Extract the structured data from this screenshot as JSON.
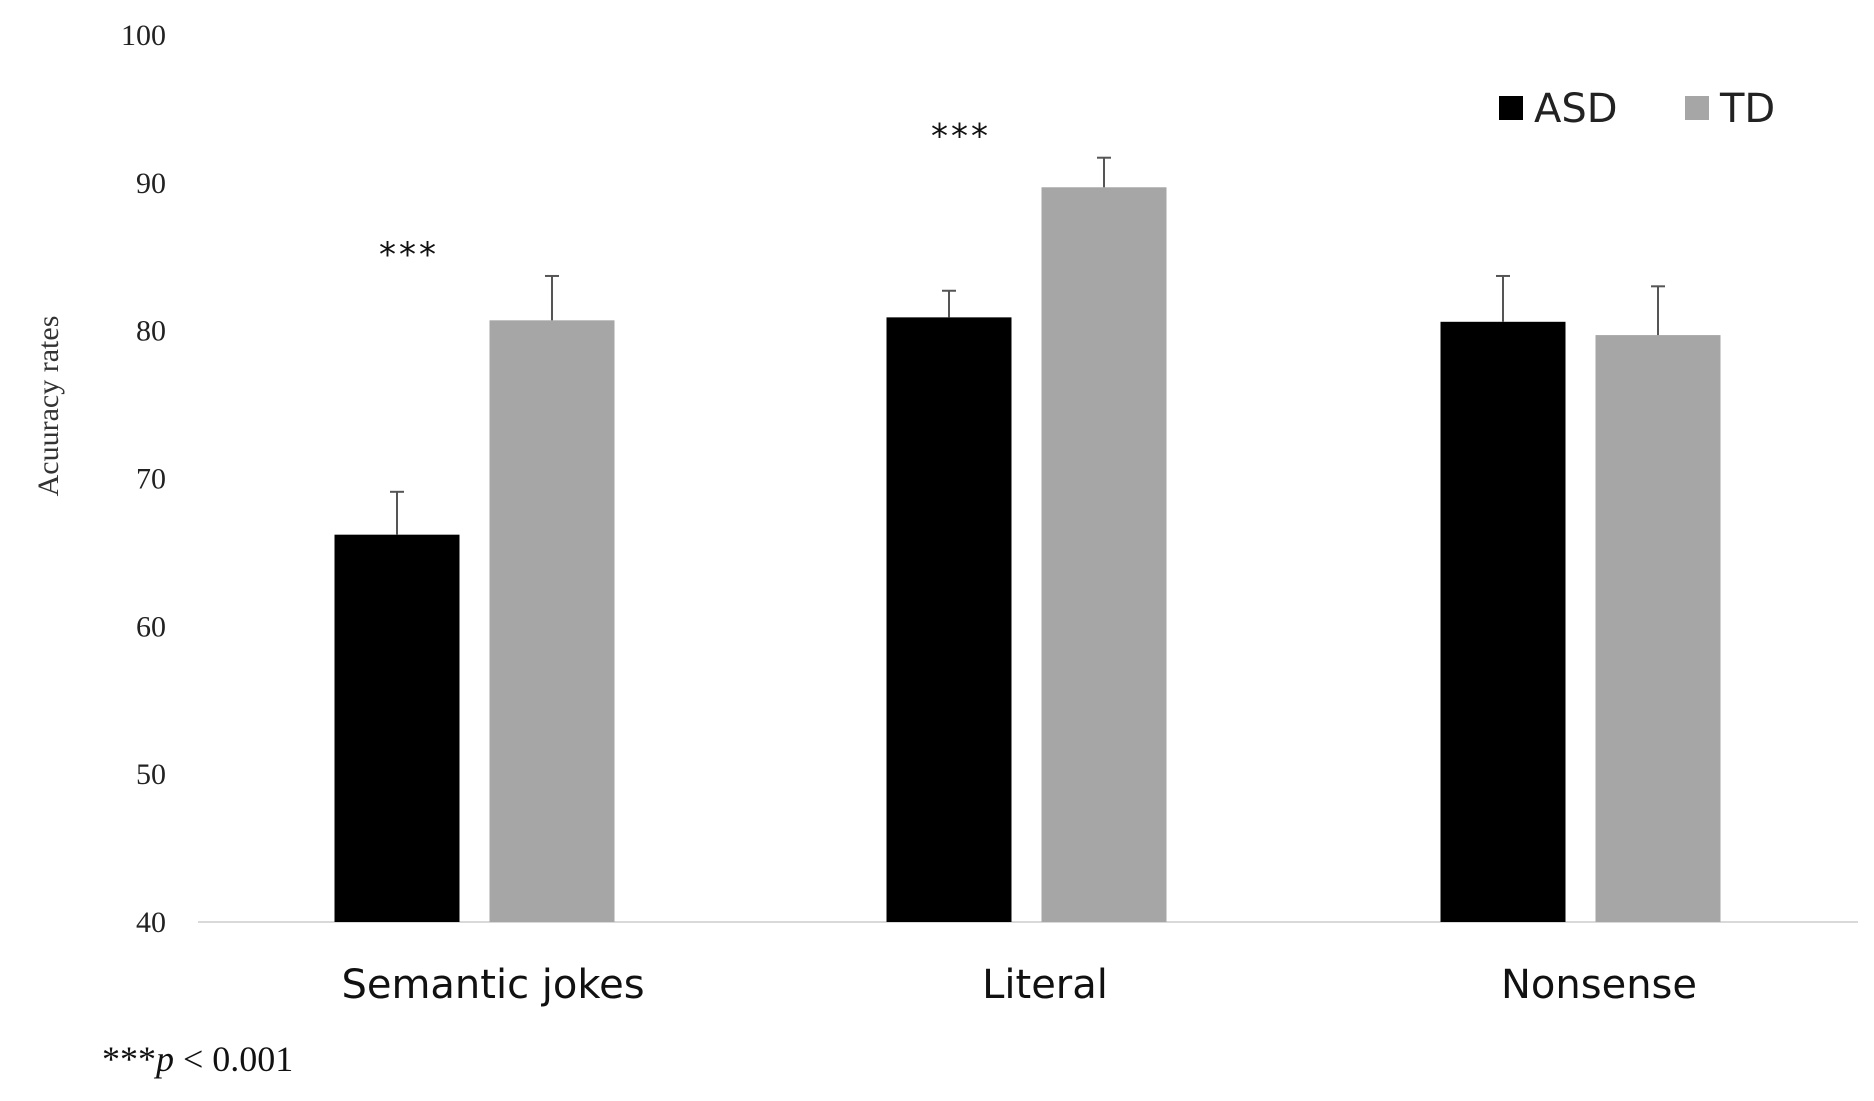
{
  "chart_data": {
    "type": "bar",
    "categories": [
      "Semantic jokes",
      "Literal",
      "Nonsense"
    ],
    "series": [
      {
        "name": "ASD",
        "color": "#000000",
        "values": [
          66.2,
          80.9,
          80.6
        ],
        "errors": [
          2.9,
          1.8,
          3.1
        ]
      },
      {
        "name": "TD",
        "color": "#a6a6a6",
        "values": [
          80.7,
          89.7,
          79.7
        ],
        "errors": [
          3.0,
          2.0,
          3.3
        ]
      }
    ],
    "significance": [
      "***",
      "***",
      ""
    ],
    "ylabel": "Acuuracy rates",
    "ylim": [
      40,
      100
    ],
    "yticks": [
      "40",
      "50",
      "60",
      "70",
      "80",
      "90",
      "100"
    ],
    "legend_position": "top-right",
    "grid": false
  },
  "footnote": {
    "stars": "***",
    "p": "p",
    "rest": " < 0.001"
  }
}
